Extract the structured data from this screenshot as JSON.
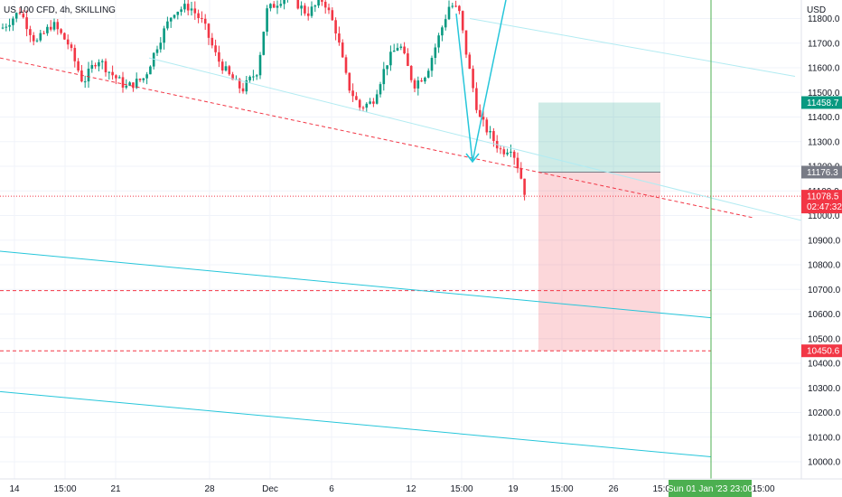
{
  "chart_data": {
    "type": "candlestick",
    "title": "US 100 CFD, 4h, SKILLING",
    "currency": "USD",
    "y_ticks": [
      11800.0,
      11700.0,
      11600.0,
      11500.0,
      11400.0,
      11300.0,
      11200.0,
      11100.0,
      11000.0,
      10900.0,
      10800.0,
      10700.0,
      10600.0,
      10500.0,
      10400.0,
      10300.0,
      10200.0,
      10100.0,
      10000.0
    ],
    "ylim": [
      9940,
      11860
    ],
    "x_ticks": [
      "14",
      "15:00",
      "21",
      "28",
      "Dec",
      "6",
      "12",
      "15:00",
      "19",
      "15:00",
      "26",
      "15:00"
    ],
    "price_tags": [
      {
        "label": "11458.7",
        "value": 11458.7,
        "color": "#089981"
      },
      {
        "label": "11176.3",
        "value": 11176.3,
        "color": "#787b86"
      },
      {
        "label": "11078.5",
        "sublabel": "02:47:32",
        "value": 11078.5,
        "color": "#f23645"
      },
      {
        "label": "10450.6",
        "value": 10450.6,
        "color": "#f23645"
      }
    ],
    "time_tag": "Sun 01 Jan '23   23:00",
    "position": {
      "entry": 11176.3,
      "target": 11458.7,
      "stop": 10450.6
    },
    "levels": [
      10695,
      10450.6
    ],
    "colors": {
      "up": "#089981",
      "down": "#f23645",
      "line": "#26c6da",
      "dash": "#f23645",
      "vline": "#4caf50"
    }
  }
}
